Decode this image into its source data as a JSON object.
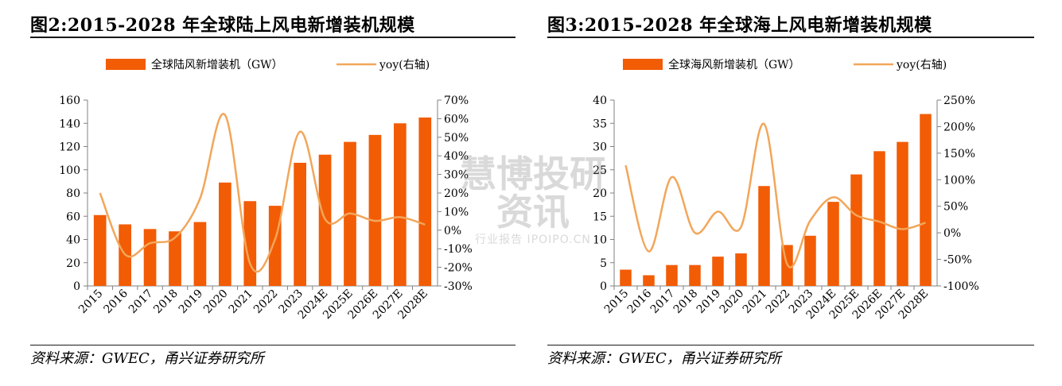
{
  "figures": [
    {
      "title": "图2:2015-2028 年全球陆上风电新增装机规模",
      "source": "资料来源：GWEC，甬兴证券研究所"
    },
    {
      "title": "图3:2015-2028 年全球海上风电新增装机规模",
      "source": "资料来源：GWEC，甬兴证券研究所"
    }
  ],
  "watermark": {
    "logo_text": "慧博投研资讯",
    "sub_text": "行业报告 IPOIPO.CN"
  },
  "colors": {
    "bar": "#F25C05",
    "line": "#F2A65A",
    "text": "#000000"
  },
  "chart_data": [
    {
      "type": "bar+line",
      "categories": [
        "2015",
        "2016",
        "2017",
        "2018",
        "2019",
        "2020",
        "2021",
        "2022",
        "2023",
        "2024E",
        "2025E",
        "2026E",
        "2027E",
        "2028E"
      ],
      "series": [
        {
          "name": "全球陆风新增装机（GW）",
          "type": "bar",
          "axis": "left",
          "values": [
            61,
            53,
            49,
            47,
            55,
            89,
            73,
            69,
            106,
            113,
            124,
            130,
            140,
            145
          ]
        },
        {
          "name": "yoy(右轴)",
          "type": "line",
          "axis": "right",
          "values": [
            20,
            -13,
            -7,
            -4,
            17,
            62,
            -18,
            -5,
            53,
            6,
            9,
            5,
            7,
            3
          ]
        }
      ],
      "left_axis": {
        "min": 0,
        "max": 160,
        "ticks": [
          "0",
          "20",
          "40",
          "60",
          "80",
          "100",
          "120",
          "140",
          "160"
        ]
      },
      "right_axis": {
        "min": -30,
        "max": 70,
        "ticks": [
          "-30%",
          "-20%",
          "-10%",
          "0%",
          "10%",
          "20%",
          "30%",
          "40%",
          "50%",
          "60%",
          "70%"
        ]
      },
      "legend_position": "top",
      "grid": false
    },
    {
      "type": "bar+line",
      "categories": [
        "2015",
        "2016",
        "2017",
        "2018",
        "2019",
        "2020",
        "2021",
        "2022",
        "2023",
        "2024E",
        "2025E",
        "2026E",
        "2027E",
        "2028E"
      ],
      "series": [
        {
          "name": "全球海风新增装机（GW）",
          "type": "bar",
          "axis": "left",
          "values": [
            3.5,
            2.3,
            4.5,
            4.5,
            6.3,
            7.0,
            21.5,
            8.8,
            10.8,
            18.1,
            24.0,
            29.0,
            31.0,
            37.0
          ]
        },
        {
          "name": "yoy(右轴)",
          "type": "line",
          "axis": "right",
          "values": [
            127,
            -35,
            105,
            0,
            40,
            11,
            205,
            -59,
            23,
            67,
            33,
            21,
            7,
            19
          ]
        }
      ],
      "left_axis": {
        "min": 0,
        "max": 40,
        "ticks": [
          "0",
          "5",
          "10",
          "15",
          "20",
          "25",
          "30",
          "35",
          "40"
        ]
      },
      "right_axis": {
        "min": -100,
        "max": 250,
        "ticks": [
          "-100%",
          "-50%",
          "0%",
          "50%",
          "100%",
          "150%",
          "200%",
          "250%"
        ]
      },
      "legend_position": "top",
      "grid": false
    }
  ]
}
